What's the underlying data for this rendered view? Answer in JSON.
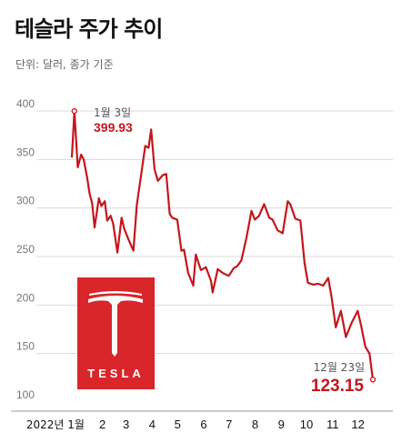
{
  "title": "테슬라 주가 추이",
  "unit": "단위: 달러, 종가 기준",
  "colors": {
    "line": "#c4161c",
    "grid": "#d9d9d9",
    "logo_bg": "#d8262b"
  },
  "logo": {
    "icon": "tesla-logo-icon",
    "text": "TESLA"
  },
  "annotations": {
    "max": {
      "date": "1월 3일",
      "value": "399.93"
    },
    "last": {
      "date": "12월 23일",
      "value": "123.15"
    }
  },
  "chart_data": {
    "type": "line",
    "title": "테슬라 주가 추이",
    "xlabel": "",
    "ylabel": "",
    "ylim": [
      100,
      400
    ],
    "yticks": [
      100,
      150,
      200,
      250,
      300,
      350,
      400
    ],
    "xticks": [
      {
        "label": "2022년 1월",
        "month": 1
      },
      {
        "label": "2",
        "month": 2
      },
      {
        "label": "3",
        "month": 3
      },
      {
        "label": "4",
        "month": 4
      },
      {
        "label": "5",
        "month": 5
      },
      {
        "label": "6",
        "month": 6
      },
      {
        "label": "7",
        "month": 7
      },
      {
        "label": "8",
        "month": 8
      },
      {
        "label": "9",
        "month": 9
      },
      {
        "label": "10",
        "month": 10
      },
      {
        "label": "11",
        "month": 11
      },
      {
        "label": "12",
        "month": 12
      }
    ],
    "series": [
      {
        "x": [
          "2021-12-31",
          "2022-01-03",
          "2022-01-07",
          "2022-01-11",
          "2022-01-14",
          "2022-01-18",
          "2022-01-21",
          "2022-01-24",
          "2022-01-27",
          "2022-02-01",
          "2022-02-04",
          "2022-02-08",
          "2022-02-11",
          "2022-02-15",
          "2022-02-18",
          "2022-02-23",
          "2022-02-28",
          "2022-03-03",
          "2022-03-08",
          "2022-03-14",
          "2022-03-18",
          "2022-03-23",
          "2022-03-28",
          "2022-04-01",
          "2022-04-04",
          "2022-04-08",
          "2022-04-12",
          "2022-04-18",
          "2022-04-22",
          "2022-04-26",
          "2022-04-29",
          "2022-05-05",
          "2022-05-10",
          "2022-05-13",
          "2022-05-18",
          "2022-05-24",
          "2022-05-27",
          "2022-06-02",
          "2022-06-08",
          "2022-06-14",
          "2022-06-16",
          "2022-06-22",
          "2022-06-28",
          "2022-07-05",
          "2022-07-11",
          "2022-07-15",
          "2022-07-20",
          "2022-07-26",
          "2022-08-01",
          "2022-08-05",
          "2022-08-10",
          "2022-08-16",
          "2022-08-22",
          "2022-08-26",
          "2022-09-01",
          "2022-09-07",
          "2022-09-13",
          "2022-09-16",
          "2022-09-22",
          "2022-09-28",
          "2022-10-03",
          "2022-10-07",
          "2022-10-13",
          "2022-10-19",
          "2022-10-25",
          "2022-10-31",
          "2022-11-04",
          "2022-11-09",
          "2022-11-15",
          "2022-11-21",
          "2022-11-28",
          "2022-12-05",
          "2022-12-09",
          "2022-12-14",
          "2022-12-19",
          "2022-12-23"
        ],
        "values": [
          352,
          399.93,
          342,
          355,
          350,
          332,
          315,
          305,
          280,
          310,
          302,
          307,
          287,
          292,
          284,
          254,
          290,
          279,
          268,
          256,
          303,
          333,
          364,
          362,
          381,
          340,
          328,
          334,
          335,
          294,
          290,
          288,
          256,
          257,
          233,
          220,
          252,
          236,
          239,
          225,
          213,
          237,
          233,
          230,
          238,
          240,
          246,
          269,
          297,
          288,
          292,
          304,
          290,
          288,
          277,
          274,
          307,
          304,
          289,
          287,
          243,
          223,
          221,
          222,
          220,
          228,
          208,
          177,
          194,
          167,
          182,
          194,
          179,
          157,
          150,
          123.15
        ]
      }
    ]
  }
}
